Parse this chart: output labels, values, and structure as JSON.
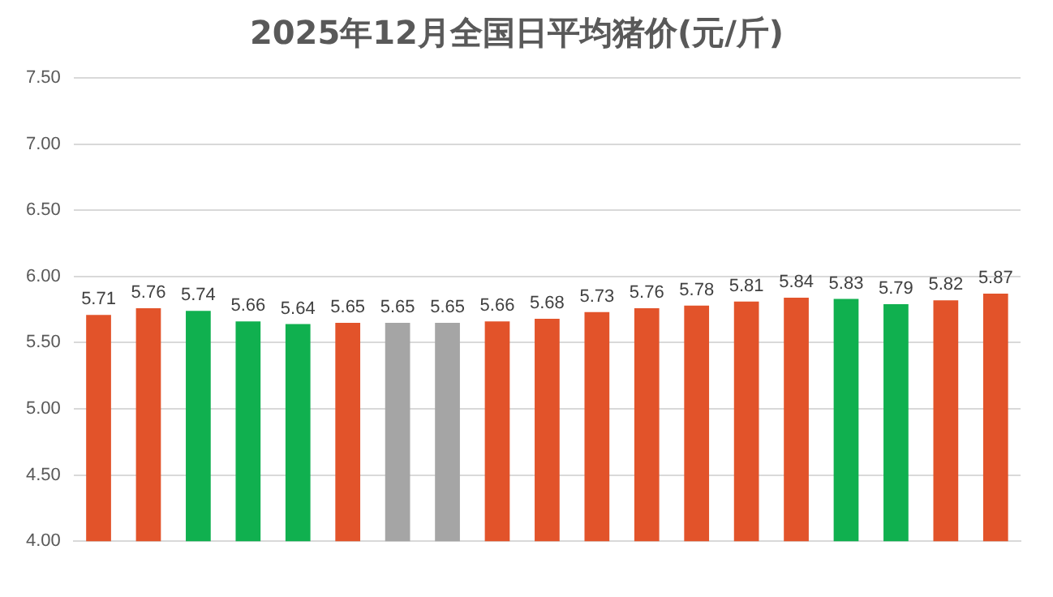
{
  "chart_data": {
    "type": "bar",
    "title": "2025年12月全国日平均猪价(元/斤)",
    "categories": [
      null,
      null,
      null,
      null,
      null,
      null,
      null,
      null,
      null,
      null,
      null,
      null,
      null,
      null,
      null,
      null,
      null,
      null,
      null
    ],
    "values": [
      5.71,
      5.76,
      5.74,
      5.66,
      5.64,
      5.65,
      5.65,
      5.65,
      5.66,
      5.68,
      5.73,
      5.76,
      5.78,
      5.81,
      5.84,
      5.83,
      5.79,
      5.82,
      5.87
    ],
    "colors": [
      "#e2532a",
      "#e2532a",
      "#10b04f",
      "#10b04f",
      "#10b04f",
      "#e2532a",
      "#a5a5a5",
      "#a5a5a5",
      "#e2532a",
      "#e2532a",
      "#e2532a",
      "#e2532a",
      "#e2532a",
      "#e2532a",
      "#e2532a",
      "#10b04f",
      "#10b04f",
      "#e2532a",
      "#e2532a"
    ],
    "ylim": [
      4,
      7.5
    ],
    "yticks": [
      {
        "value": 4,
        "label": "4.00"
      },
      {
        "value": 4.5,
        "label": "4.50"
      },
      {
        "value": 5,
        "label": "5.00"
      },
      {
        "value": 5.5,
        "label": "5.50"
      },
      {
        "value": 6,
        "label": "6.00"
      },
      {
        "value": 6.5,
        "label": "6.50"
      },
      {
        "value": 7,
        "label": "7.00"
      },
      {
        "value": 7.5,
        "label": "7.50"
      }
    ],
    "grid": "y",
    "data_labels": true,
    "legend": false
  }
}
